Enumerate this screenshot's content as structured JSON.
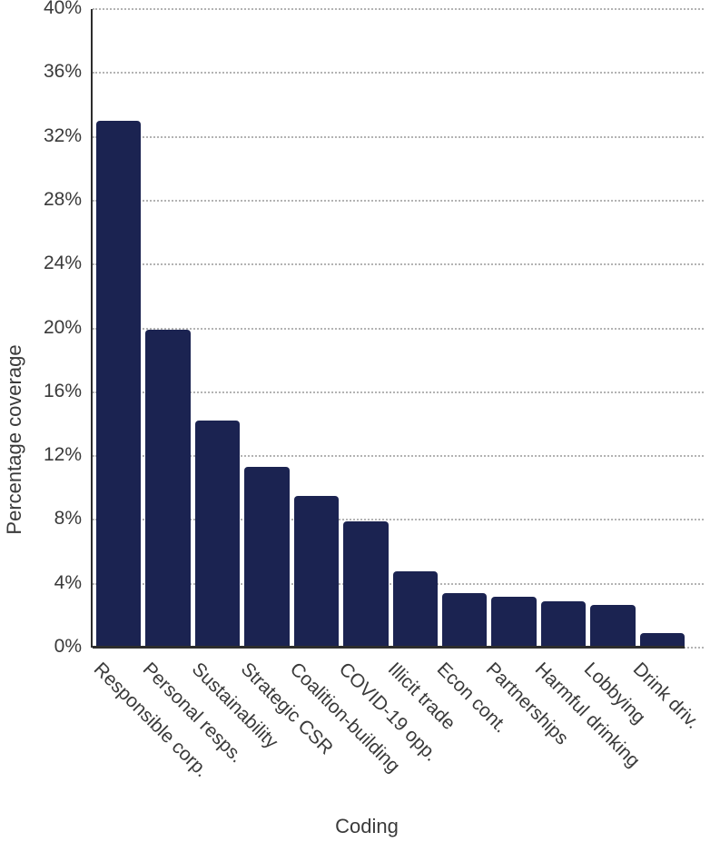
{
  "chart_data": {
    "type": "bar",
    "title": "",
    "xlabel": "Coding",
    "ylabel": "Percentage coverage",
    "categories": [
      "Responsible corp.",
      "Personal resps.",
      "Sustainability",
      "Strategic CSR",
      "Coalition-building",
      "COVID-19 opp.",
      "Illicit trade",
      "Econ cont.",
      "Partnerships",
      "Harmful drinking",
      "Lobbying",
      "Drink driv."
    ],
    "values": [
      33.0,
      19.9,
      14.2,
      11.3,
      9.5,
      7.9,
      4.8,
      3.4,
      3.2,
      2.9,
      2.7,
      0.9
    ],
    "ylim": [
      0,
      40
    ],
    "y_ticks": [
      {
        "value": 0,
        "label": "0%"
      },
      {
        "value": 4,
        "label": "4%"
      },
      {
        "value": 8,
        "label": "8%"
      },
      {
        "value": 12,
        "label": "12%"
      },
      {
        "value": 16,
        "label": "16%"
      },
      {
        "value": 20,
        "label": "20%"
      },
      {
        "value": 24,
        "label": "24%"
      },
      {
        "value": 28,
        "label": "28%"
      },
      {
        "value": 32,
        "label": "32%"
      },
      {
        "value": 36,
        "label": "36%"
      },
      {
        "value": 40,
        "label": "40%"
      }
    ],
    "grid": "horizontal-dotted",
    "legend": "none",
    "colors": {
      "bar": "#1b2351",
      "axis": "#2d2d2d",
      "grid": "#b3b3b3",
      "text": "#3a3a3a"
    }
  }
}
